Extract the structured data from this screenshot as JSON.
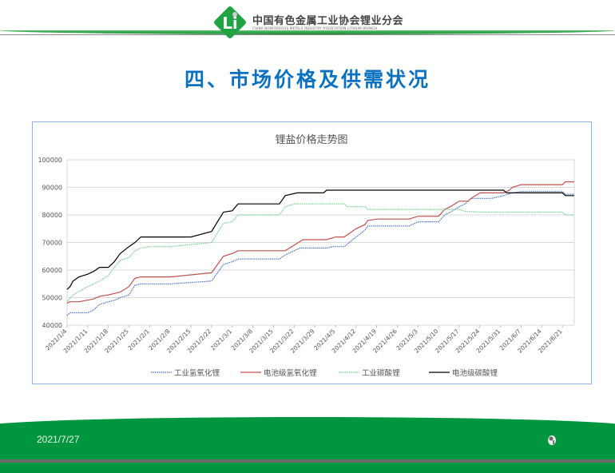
{
  "header": {
    "org_name": "中国有色金属工业协会锂业分会",
    "org_name_en": "CHINA NONFERROUS METALS INDUSTRY ASSOCIATION LITHIUM BRANCH",
    "logo_text": "Li",
    "brand_color": "#009640"
  },
  "slide": {
    "title": "四、市场价格及供需状况",
    "title_color": "#0a70c0"
  },
  "footer": {
    "date": "2021/7/27",
    "icon": "mascot-icon"
  },
  "chart_data": {
    "type": "line",
    "title": "锂盐价格走势图",
    "xlabel": "",
    "ylabel": "",
    "x_range": [
      "2021/1/4",
      "2021/6/25"
    ],
    "ylim": [
      40000,
      100000
    ],
    "y_ticks": [
      "40000",
      "50000",
      "60000",
      "70000",
      "80000",
      "90000",
      "100000"
    ],
    "x_ticks": [
      "2021/1/4",
      "2021/1/11",
      "2021/1/18",
      "2021/1/25",
      "2021/2/1",
      "2021/2/8",
      "2021/2/15",
      "2021/2/22",
      "2021/3/1",
      "2021/3/8",
      "2021/3/15",
      "2021/3/22",
      "2021/3/29",
      "2021/4/5",
      "2021/4/12",
      "2021/4/19",
      "2021/4/26",
      "2021/5/3",
      "2021/5/10",
      "2021/5/17",
      "2021/5/24",
      "2021/5/31",
      "2021/6/7",
      "2021/6/14",
      "2021/6/21"
    ],
    "grid": "horizontal",
    "legend": "bottom",
    "series": [
      {
        "name": "工业氢氧化锂",
        "color": "#4472c4",
        "style": "dotted",
        "points": [
          [
            "2021/1/4",
            43500
          ],
          [
            "2021/1/5",
            44500
          ],
          [
            "2021/1/11",
            44500
          ],
          [
            "2021/1/13",
            45500
          ],
          [
            "2021/1/15",
            47500
          ],
          [
            "2021/1/18",
            48500
          ],
          [
            "2021/1/20",
            49000
          ],
          [
            "2021/1/22",
            50000
          ],
          [
            "2021/1/25",
            51000
          ],
          [
            "2021/1/27",
            54500
          ],
          [
            "2021/1/29",
            55000
          ],
          [
            "2021/2/8",
            55000
          ],
          [
            "2021/2/22",
            56000
          ],
          [
            "2021/2/26",
            62000
          ],
          [
            "2021/3/1",
            63000
          ],
          [
            "2021/3/3",
            64000
          ],
          [
            "2021/3/17",
            64000
          ],
          [
            "2021/3/19",
            65500
          ],
          [
            "2021/3/22",
            67000
          ],
          [
            "2021/3/24",
            68000
          ],
          [
            "2021/4/2",
            68000
          ],
          [
            "2021/4/4",
            68500
          ],
          [
            "2021/4/8",
            68500
          ],
          [
            "2021/4/12",
            72000
          ],
          [
            "2021/4/15",
            74500
          ],
          [
            "2021/4/16",
            76000
          ],
          [
            "2021/4/30",
            76000
          ],
          [
            "2021/5/3",
            77500
          ],
          [
            "2021/5/10",
            77500
          ],
          [
            "2021/5/12",
            80000
          ],
          [
            "2021/5/14",
            81000
          ],
          [
            "2021/5/17",
            83000
          ],
          [
            "2021/5/19",
            84000
          ],
          [
            "2021/5/21",
            86000
          ],
          [
            "2021/5/28",
            86000
          ],
          [
            "2021/6/1",
            87000
          ],
          [
            "2021/6/4",
            88000
          ],
          [
            "2021/6/7",
            88500
          ],
          [
            "2021/6/21",
            88500
          ],
          [
            "2021/6/22",
            87500
          ],
          [
            "2021/6/25",
            87500
          ]
        ]
      },
      {
        "name": "电池级氢氧化锂",
        "color": "#c0504d",
        "style": "solid",
        "points": [
          [
            "2021/1/4",
            48000
          ],
          [
            "2021/1/5",
            48500
          ],
          [
            "2021/1/8",
            48500
          ],
          [
            "2021/1/13",
            49500
          ],
          [
            "2021/1/15",
            50500
          ],
          [
            "2021/1/18",
            51000
          ],
          [
            "2021/1/20",
            51500
          ],
          [
            "2021/1/22",
            52000
          ],
          [
            "2021/1/25",
            54000
          ],
          [
            "2021/1/27",
            57000
          ],
          [
            "2021/1/29",
            57500
          ],
          [
            "2021/2/8",
            57500
          ],
          [
            "2021/2/22",
            59000
          ],
          [
            "2021/2/26",
            65000
          ],
          [
            "2021/3/1",
            66000
          ],
          [
            "2021/3/3",
            67000
          ],
          [
            "2021/3/19",
            67000
          ],
          [
            "2021/3/22",
            69000
          ],
          [
            "2021/3/25",
            71000
          ],
          [
            "2021/4/2",
            71000
          ],
          [
            "2021/4/5",
            72000
          ],
          [
            "2021/4/8",
            72000
          ],
          [
            "2021/4/12",
            75000
          ],
          [
            "2021/4/15",
            76500
          ],
          [
            "2021/4/16",
            78000
          ],
          [
            "2021/4/19",
            78500
          ],
          [
            "2021/4/30",
            78500
          ],
          [
            "2021/5/3",
            79500
          ],
          [
            "2021/5/10",
            79500
          ],
          [
            "2021/5/12",
            82000
          ],
          [
            "2021/5/14",
            83000
          ],
          [
            "2021/5/17",
            85000
          ],
          [
            "2021/5/20",
            85000
          ],
          [
            "2021/5/21",
            86000
          ],
          [
            "2021/5/24",
            88000
          ],
          [
            "2021/6/1",
            88000
          ],
          [
            "2021/6/3",
            89000
          ],
          [
            "2021/6/4",
            90000
          ],
          [
            "2021/6/7",
            91000
          ],
          [
            "2021/6/21",
            91000
          ],
          [
            "2021/6/22",
            92000
          ],
          [
            "2021/6/25",
            92000
          ]
        ]
      },
      {
        "name": "工业碳酸锂",
        "color": "#70d090",
        "style": "dotted",
        "points": [
          [
            "2021/1/4",
            48500
          ],
          [
            "2021/1/6",
            51000
          ],
          [
            "2021/1/11",
            54000
          ],
          [
            "2021/1/15",
            56000
          ],
          [
            "2021/1/18",
            58000
          ],
          [
            "2021/1/20",
            61000
          ],
          [
            "2021/1/22",
            63500
          ],
          [
            "2021/1/25",
            64500
          ],
          [
            "2021/1/27",
            67000
          ],
          [
            "2021/1/29",
            68000
          ],
          [
            "2021/2/1",
            68500
          ],
          [
            "2021/2/8",
            68500
          ],
          [
            "2021/2/22",
            70000
          ],
          [
            "2021/2/26",
            77000
          ],
          [
            "2021/3/1",
            77500
          ],
          [
            "2021/3/3",
            80000
          ],
          [
            "2021/3/17",
            80000
          ],
          [
            "2021/3/19",
            83000
          ],
          [
            "2021/3/22",
            84000
          ],
          [
            "2021/4/8",
            84000
          ],
          [
            "2021/4/9",
            83000
          ],
          [
            "2021/4/15",
            83000
          ],
          [
            "2021/4/16",
            82000
          ],
          [
            "2021/5/17",
            82000
          ],
          [
            "2021/5/19",
            81300
          ],
          [
            "2021/5/24",
            81000
          ],
          [
            "2021/6/21",
            81000
          ],
          [
            "2021/6/22",
            80000
          ],
          [
            "2021/6/25",
            80000
          ]
        ]
      },
      {
        "name": "电池级碳酸锂",
        "color": "#000000",
        "style": "solid",
        "points": [
          [
            "2021/1/4",
            53000
          ],
          [
            "2021/1/5",
            54000
          ],
          [
            "2021/1/6",
            56000
          ],
          [
            "2021/1/8",
            57500
          ],
          [
            "2021/1/11",
            58500
          ],
          [
            "2021/1/13",
            59500
          ],
          [
            "2021/1/15",
            61000
          ],
          [
            "2021/1/18",
            61000
          ],
          [
            "2021/1/20",
            63000
          ],
          [
            "2021/1/22",
            66000
          ],
          [
            "2021/1/25",
            68500
          ],
          [
            "2021/1/27",
            70000
          ],
          [
            "2021/1/28",
            71000
          ],
          [
            "2021/1/29",
            72000
          ],
          [
            "2021/2/15",
            72000
          ],
          [
            "2021/2/22",
            74000
          ],
          [
            "2021/2/26",
            81000
          ],
          [
            "2021/3/1",
            81500
          ],
          [
            "2021/3/3",
            84000
          ],
          [
            "2021/3/17",
            84000
          ],
          [
            "2021/3/19",
            87000
          ],
          [
            "2021/3/23",
            88000
          ],
          [
            "2021/4/1",
            88000
          ],
          [
            "2021/4/2",
            89000
          ],
          [
            "2021/6/1",
            89000
          ],
          [
            "2021/6/2",
            88000
          ],
          [
            "2021/6/21",
            88000
          ],
          [
            "2021/6/22",
            87000
          ],
          [
            "2021/6/25",
            87000
          ]
        ]
      }
    ]
  }
}
